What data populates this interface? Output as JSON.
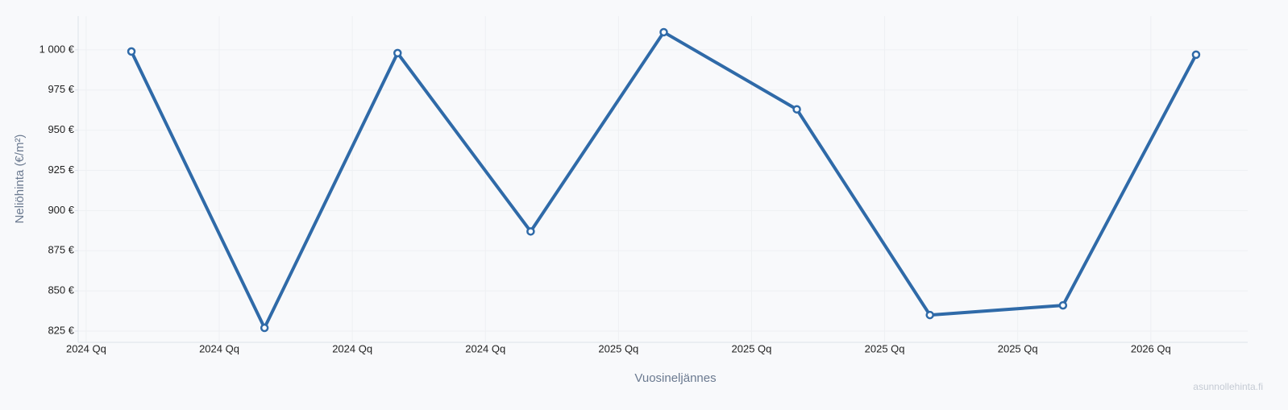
{
  "chart_data": {
    "type": "line",
    "x_label": "Vuosineljännes",
    "y_label": "Neliöhinta (€/m²)",
    "watermark": "asunnollehinta.fi",
    "x": [
      2024.085,
      2024.335,
      2024.585,
      2024.835,
      2025.085,
      2025.335,
      2025.585,
      2025.835,
      2026.085
    ],
    "series": [
      {
        "color": "#2f6aa8",
        "values": [
          999,
          827,
          998,
          887,
          1011,
          963,
          835,
          841,
          997
        ]
      }
    ],
    "xlim": [
      2023.985,
      2026.182
    ],
    "xticks": [
      {
        "value": 2024,
        "label": "2024 Qq"
      },
      {
        "value": 2024.25,
        "label": "2024 Qq"
      },
      {
        "value": 2024.5,
        "label": "2024 Qq"
      },
      {
        "value": 2024.75,
        "label": "2024 Qq"
      },
      {
        "value": 2025,
        "label": "2025 Qq"
      },
      {
        "value": 2025.25,
        "label": "2025 Qq"
      },
      {
        "value": 2025.5,
        "label": "2025 Qq"
      },
      {
        "value": 2025.75,
        "label": "2025 Qq"
      },
      {
        "value": 2026,
        "label": "2026 Qq"
      }
    ],
    "ylim": [
      818,
      1021
    ],
    "yticks": [
      {
        "value": 825,
        "label": "825 €"
      },
      {
        "value": 850,
        "label": "850 €"
      },
      {
        "value": 875,
        "label": "875 €"
      },
      {
        "value": 900,
        "label": "900 €"
      },
      {
        "value": 925,
        "label": "925 €"
      },
      {
        "value": 950,
        "label": "950 €"
      },
      {
        "value": 975,
        "label": "975 €"
      },
      {
        "value": 1000,
        "label": "1 000 €"
      }
    ],
    "grid": true
  }
}
